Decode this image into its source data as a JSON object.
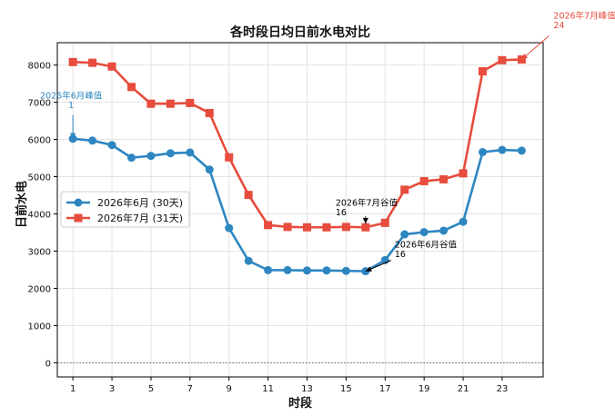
{
  "chart_data": {
    "type": "line",
    "title": "各时段日均日前水电对比",
    "xlabel": "时段",
    "ylabel": "日前水电",
    "x": [
      1,
      2,
      3,
      4,
      5,
      6,
      7,
      8,
      9,
      10,
      11,
      12,
      13,
      14,
      15,
      16,
      17,
      18,
      19,
      20,
      21,
      22,
      23,
      24
    ],
    "xticks": [
      1,
      3,
      5,
      7,
      9,
      11,
      13,
      15,
      17,
      19,
      21,
      23
    ],
    "xlim": [
      0.2,
      25.1
    ],
    "ylim": [
      -380,
      8600
    ],
    "yticks": [
      0,
      1000,
      2000,
      3000,
      4000,
      5000,
      6000,
      7000,
      8000
    ],
    "grid": true,
    "legend_position": "center-left",
    "series": [
      {
        "name": "2026年6月 (30天)",
        "color": "#2E86C1",
        "marker": "circle",
        "values": [
          6020,
          5970,
          5850,
          5510,
          5560,
          5630,
          5650,
          5190,
          3620,
          2740,
          2490,
          2490,
          2480,
          2480,
          2470,
          2460,
          2760,
          3450,
          3510,
          3550,
          3790,
          5660,
          5720,
          5700
        ]
      },
      {
        "name": "2026年7月 (31天)",
        "color": "#E74C3C",
        "marker": "square",
        "values": [
          8080,
          8060,
          7960,
          7410,
          6960,
          6960,
          6980,
          6710,
          5520,
          4510,
          3700,
          3650,
          3640,
          3640,
          3650,
          3640,
          3760,
          4650,
          4880,
          4930,
          5090,
          7830,
          8130,
          8150
        ]
      }
    ],
    "annotations": [
      {
        "text": "2026年6月峰值\n1",
        "color": "#2E86C1",
        "x": 1,
        "y": 6020
      },
      {
        "text": "2026年7月峰值\n24",
        "color": "#E74C3C",
        "x": 24,
        "y": 8150
      },
      {
        "text": "2026年7月谷值\n16",
        "color": "#000000",
        "x": 16,
        "y": 3640
      },
      {
        "text": "2026年6月谷值\n16",
        "color": "#000000",
        "x": 16,
        "y": 2460
      }
    ],
    "reference_line_y": 0
  }
}
